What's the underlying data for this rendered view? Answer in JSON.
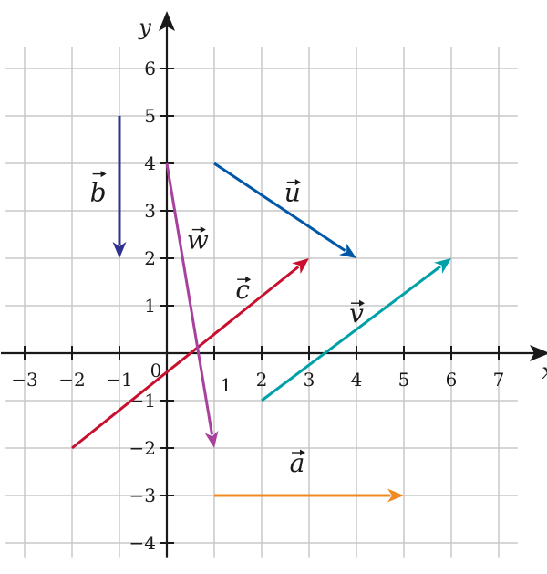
{
  "diagram": {
    "x_axis_label": "x",
    "y_axis_label": "y",
    "origin_label": "0",
    "x_range": [
      -3.5,
      7.5
    ],
    "y_range": [
      -4.3,
      6.8
    ],
    "x_ticks": [
      {
        "value": -3,
        "label": "−3"
      },
      {
        "value": -2,
        "label": "−2"
      },
      {
        "value": -1,
        "label": "−1"
      },
      {
        "value": 1,
        "label": "1"
      },
      {
        "value": 2,
        "label": "2"
      },
      {
        "value": 3,
        "label": "3"
      },
      {
        "value": 4,
        "label": "4"
      },
      {
        "value": 5,
        "label": "5"
      },
      {
        "value": 6,
        "label": "6"
      },
      {
        "value": 7,
        "label": "7"
      }
    ],
    "y_ticks": [
      {
        "value": 6,
        "label": "6"
      },
      {
        "value": 5,
        "label": "5"
      },
      {
        "value": 4,
        "label": "4"
      },
      {
        "value": 3,
        "label": "3"
      },
      {
        "value": 2,
        "label": "2"
      },
      {
        "value": 1,
        "label": "1"
      },
      {
        "value": -1,
        "label": "−1"
      },
      {
        "value": -2,
        "label": "−2"
      },
      {
        "value": -3,
        "label": "−3"
      },
      {
        "value": -4,
        "label": "−4"
      }
    ],
    "grid": true,
    "vectors": [
      {
        "name": "a",
        "label": "a",
        "from": [
          1,
          -3
        ],
        "to": [
          5,
          -3
        ],
        "color": "#f08a24",
        "label_at": [
          2.75,
          -2.5
        ]
      },
      {
        "name": "b",
        "label": "b",
        "from": [
          -1,
          5
        ],
        "to": [
          -1,
          2
        ],
        "color": "#2e3192",
        "label_at": [
          -1.45,
          3.2
        ]
      },
      {
        "name": "c",
        "label": "c",
        "from": [
          -2,
          -2
        ],
        "to": [
          3,
          2
        ],
        "color": "#c8102e",
        "label_at": [
          1.6,
          1.15
        ]
      },
      {
        "name": "u",
        "label": "u",
        "from": [
          1,
          4
        ],
        "to": [
          4,
          2
        ],
        "color": "#0057a8",
        "label_at": [
          2.65,
          3.2
        ]
      },
      {
        "name": "v",
        "label": "v",
        "from": [
          2,
          -1
        ],
        "to": [
          6,
          2
        ],
        "color": "#00a0a8",
        "label_at": [
          4.0,
          0.65
        ]
      },
      {
        "name": "w",
        "label": "w",
        "from": [
          0,
          4
        ],
        "to": [
          1,
          -2
        ],
        "color": "#a8409e",
        "label_at": [
          0.65,
          2.2
        ]
      }
    ]
  }
}
